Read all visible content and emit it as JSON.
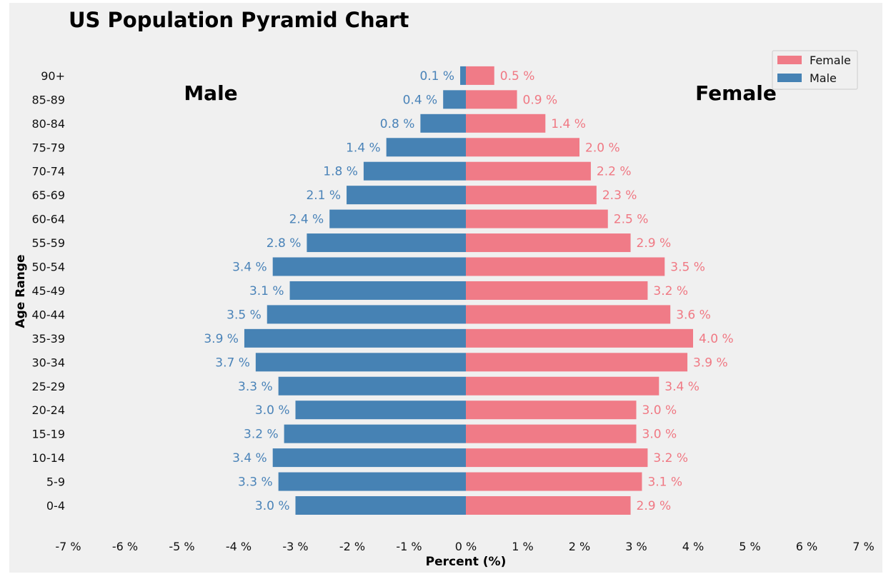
{
  "chart_data": {
    "type": "bar",
    "orientation": "horizontal",
    "title": "US Population Pyramid Chart",
    "xlabel": "Percent (%)",
    "ylabel": "Age Range",
    "xlim": [
      -7,
      7
    ],
    "x_ticks": [
      "-7 %",
      "-6 %",
      "-5 %",
      "-4 %",
      "-3 %",
      "-2 %",
      "-1 %",
      "0 %",
      "1 %",
      "2 %",
      "3 %",
      "4 %",
      "5 %",
      "6 %",
      "7 %"
    ],
    "grid": false,
    "legend_position": "top-right",
    "side_labels": {
      "left": "Male",
      "right": "Female"
    },
    "categories": [
      "0-4",
      "5-9",
      "10-14",
      "15-19",
      "20-24",
      "25-29",
      "30-34",
      "35-39",
      "40-44",
      "45-49",
      "50-54",
      "55-59",
      "60-64",
      "65-69",
      "70-74",
      "75-79",
      "80-84",
      "85-89",
      "90+"
    ],
    "series": [
      {
        "name": "Female",
        "color": "#f07b87",
        "values": [
          2.9,
          3.1,
          3.2,
          3.0,
          3.0,
          3.4,
          3.9,
          4.0,
          3.6,
          3.2,
          3.5,
          2.9,
          2.5,
          2.3,
          2.2,
          2.0,
          1.4,
          0.9,
          0.5
        ],
        "labels": [
          "2.9 %",
          "3.1 %",
          "3.2 %",
          "3.0 %",
          "3.0 %",
          "3.4 %",
          "3.9 %",
          "4.0 %",
          "3.6 %",
          "3.2 %",
          "3.5 %",
          "2.9 %",
          "2.5 %",
          "2.3 %",
          "2.2 %",
          "2.0 %",
          "1.4 %",
          "0.9 %",
          "0.5 %"
        ]
      },
      {
        "name": "Male",
        "color": "#4682b4",
        "values": [
          -3.0,
          -3.3,
          -3.4,
          -3.2,
          -3.0,
          -3.3,
          -3.7,
          -3.9,
          -3.5,
          -3.1,
          -3.4,
          -2.8,
          -2.4,
          -2.1,
          -1.8,
          -1.4,
          -0.8,
          -0.4,
          -0.1
        ],
        "labels": [
          "3.0 %",
          "3.3 %",
          "3.4 %",
          "3.2 %",
          "3.0 %",
          "3.3 %",
          "3.7 %",
          "3.9 %",
          "3.5 %",
          "3.1 %",
          "3.4 %",
          "2.8 %",
          "2.4 %",
          "2.1 %",
          "1.8 %",
          "1.4 %",
          "0.8 %",
          "0.4 %",
          "0.1 %"
        ]
      }
    ]
  }
}
